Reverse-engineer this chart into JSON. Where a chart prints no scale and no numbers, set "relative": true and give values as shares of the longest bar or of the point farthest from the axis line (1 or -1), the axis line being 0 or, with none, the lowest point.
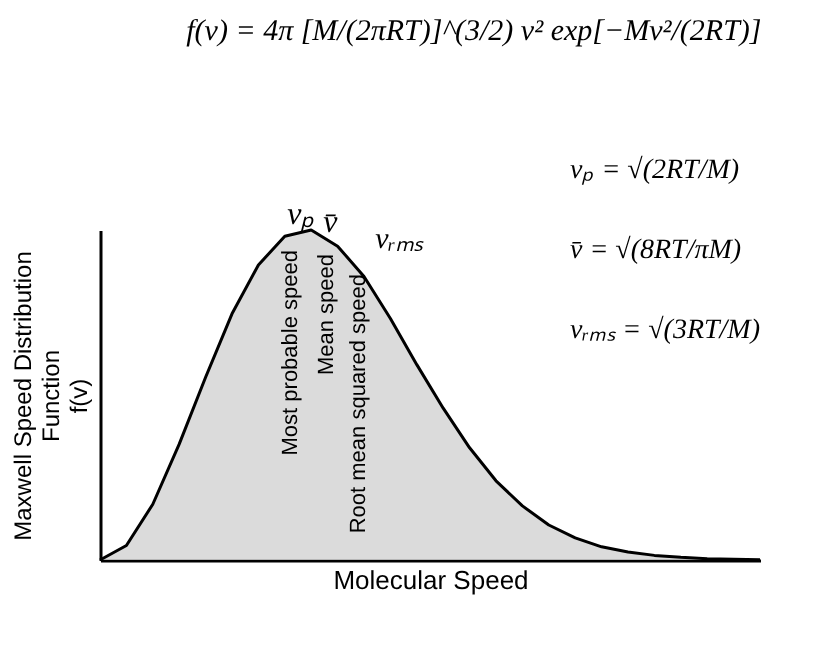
{
  "chart_data": {
    "type": "area",
    "relative": true,
    "title": "f(v) = 4π [M/(2πRT)]^(3/2) v² exp[−Mv²/(2RT)]",
    "xlabel": "Molecular Speed",
    "ylabel": "Maxwell Speed Distribution Function f(v)",
    "categories": [
      null,
      null,
      null,
      null,
      null,
      null,
      null,
      null,
      null,
      null,
      null,
      null,
      null,
      null,
      null,
      null,
      null,
      null,
      null,
      null,
      null,
      null,
      null,
      null,
      null,
      null
    ],
    "series": [
      {
        "color": "#cccccc",
        "values": [
          0,
          0.044,
          0.169,
          0.351,
          0.554,
          0.746,
          0.894,
          0.981,
          1,
          0.951,
          0.859,
          0.732,
          0.592,
          0.46,
          0.34,
          0.24,
          0.164,
          0.106,
          0.067,
          0.04,
          0.024,
          0.014,
          0.008,
          0.004,
          0.002,
          0.001
        ]
      }
    ],
    "annotations": [
      "vₚ",
      "v̄",
      "vᵣₘₛ",
      "Most probable speed",
      "Mean speed",
      "Root mean squared speed",
      "vₚ = √(2RT/M)",
      "v̄ = √(8RT/πM)",
      "vᵣₘₛ = √(3RT/M)"
    ],
    "tick_labels": false,
    "grid": false
  }
}
